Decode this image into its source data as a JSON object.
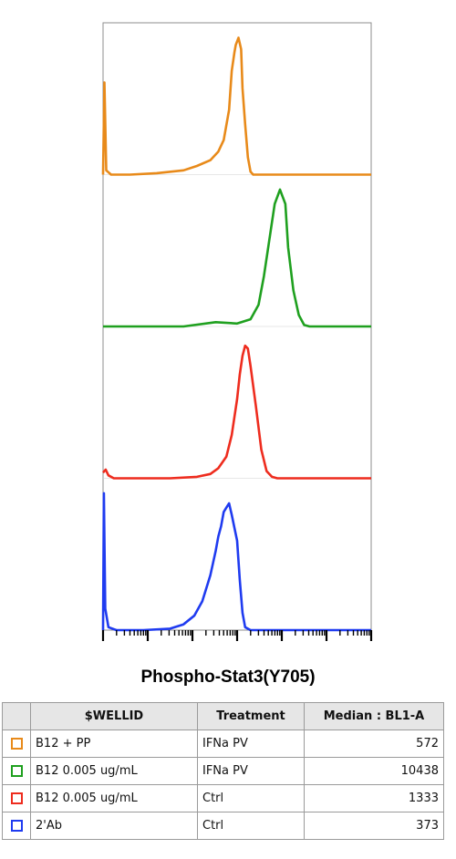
{
  "chart_data": {
    "type": "area",
    "subtype": "stacked-histogram-overlay",
    "xlabel": "Phospho-Stat3(Y705)",
    "xscale": "log",
    "grid": false,
    "series": [
      {
        "color": "#e88a1a",
        "points": [
          [
            0.0,
            0.0
          ],
          [
            0.005,
            0.64
          ],
          [
            0.012,
            0.03
          ],
          [
            0.03,
            0.0
          ],
          [
            0.1,
            0.0
          ],
          [
            0.2,
            0.01
          ],
          [
            0.3,
            0.03
          ],
          [
            0.35,
            0.06
          ],
          [
            0.4,
            0.1
          ],
          [
            0.43,
            0.16
          ],
          [
            0.45,
            0.24
          ],
          [
            0.47,
            0.45
          ],
          [
            0.48,
            0.72
          ],
          [
            0.49,
            0.85
          ],
          [
            0.495,
            0.9
          ],
          [
            0.505,
            0.95
          ],
          [
            0.515,
            0.87
          ],
          [
            0.52,
            0.6
          ],
          [
            0.53,
            0.35
          ],
          [
            0.54,
            0.12
          ],
          [
            0.55,
            0.02
          ],
          [
            0.56,
            0.0
          ],
          [
            1.0,
            0.0
          ]
        ]
      },
      {
        "color": "#1fa01f",
        "points": [
          [
            0.0,
            0.0
          ],
          [
            0.3,
            0.0
          ],
          [
            0.42,
            0.03
          ],
          [
            0.5,
            0.02
          ],
          [
            0.55,
            0.05
          ],
          [
            0.58,
            0.15
          ],
          [
            0.6,
            0.35
          ],
          [
            0.62,
            0.6
          ],
          [
            0.64,
            0.85
          ],
          [
            0.66,
            0.95
          ],
          [
            0.68,
            0.85
          ],
          [
            0.69,
            0.55
          ],
          [
            0.71,
            0.25
          ],
          [
            0.73,
            0.08
          ],
          [
            0.75,
            0.01
          ],
          [
            0.77,
            0.0
          ],
          [
            1.0,
            0.0
          ]
        ]
      },
      {
        "color": "#ee2c1e",
        "points": [
          [
            0.0,
            0.04
          ],
          [
            0.01,
            0.06
          ],
          [
            0.02,
            0.02
          ],
          [
            0.04,
            0.0
          ],
          [
            0.25,
            0.0
          ],
          [
            0.35,
            0.01
          ],
          [
            0.4,
            0.03
          ],
          [
            0.43,
            0.07
          ],
          [
            0.46,
            0.15
          ],
          [
            0.48,
            0.3
          ],
          [
            0.5,
            0.55
          ],
          [
            0.51,
            0.72
          ],
          [
            0.52,
            0.85
          ],
          [
            0.53,
            0.92
          ],
          [
            0.54,
            0.9
          ],
          [
            0.55,
            0.78
          ],
          [
            0.57,
            0.5
          ],
          [
            0.59,
            0.2
          ],
          [
            0.61,
            0.05
          ],
          [
            0.63,
            0.01
          ],
          [
            0.65,
            0.0
          ],
          [
            1.0,
            0.0
          ]
        ]
      },
      {
        "color": "#1f3bf0",
        "points": [
          [
            0.0,
            0.0
          ],
          [
            0.003,
            0.95
          ],
          [
            0.008,
            0.15
          ],
          [
            0.02,
            0.02
          ],
          [
            0.05,
            0.0
          ],
          [
            0.15,
            0.0
          ],
          [
            0.25,
            0.01
          ],
          [
            0.3,
            0.04
          ],
          [
            0.34,
            0.1
          ],
          [
            0.37,
            0.2
          ],
          [
            0.4,
            0.38
          ],
          [
            0.42,
            0.55
          ],
          [
            0.43,
            0.65
          ],
          [
            0.44,
            0.72
          ],
          [
            0.45,
            0.82
          ],
          [
            0.46,
            0.85
          ],
          [
            0.47,
            0.88
          ],
          [
            0.48,
            0.8
          ],
          [
            0.5,
            0.62
          ],
          [
            0.51,
            0.35
          ],
          [
            0.52,
            0.12
          ],
          [
            0.53,
            0.02
          ],
          [
            0.55,
            0.0
          ],
          [
            1.0,
            0.0
          ]
        ]
      }
    ]
  },
  "legend": {
    "columns": [
      "$WELLID",
      "Treatment",
      "Median : BL1-A"
    ],
    "rows": [
      {
        "color": "#e88a1a",
        "wellid": "B12 + PP",
        "treatment": "IFNa PV",
        "median": "572"
      },
      {
        "color": "#1fa01f",
        "wellid": "B12 0.005 ug/mL",
        "treatment": "IFNa PV",
        "median": "10438"
      },
      {
        "color": "#ee2c1e",
        "wellid": "B12 0.005 ug/mL",
        "treatment": "Ctrl",
        "median": "1333"
      },
      {
        "color": "#1f3bf0",
        "wellid": "2'Ab",
        "treatment": "Ctrl",
        "median": "373"
      }
    ]
  }
}
